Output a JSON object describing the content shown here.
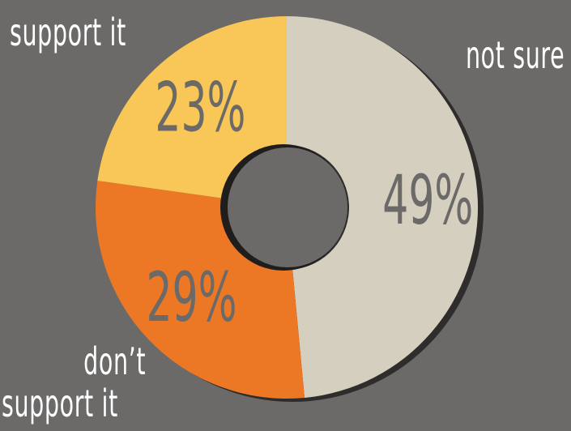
{
  "chart_data": {
    "type": "pie",
    "style": "donut",
    "slices": [
      {
        "label": "not sure",
        "value": 49,
        "value_label": "49%",
        "color": "#d5cfbf"
      },
      {
        "label": "don’t support it",
        "value": 29,
        "value_label": "29%",
        "color": "#ec7724"
      },
      {
        "label": "support it",
        "value": 23,
        "value_label": "23%",
        "color": "#f9c658"
      }
    ],
    "label_color": "#ffffff",
    "value_label_color": "#6b6a69",
    "background": "#6b6a69",
    "legend": "none"
  },
  "labels": {
    "support": "support it",
    "not_sure": "not sure",
    "dont_support_line1": "don’t",
    "dont_support_line2": "support it"
  }
}
